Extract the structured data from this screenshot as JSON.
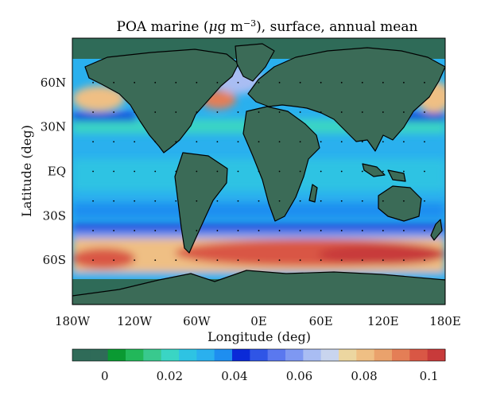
{
  "chart_data": {
    "type": "heatmap",
    "title": {
      "prefix": "POA marine (",
      "mu": "μ",
      "unit_base": "g m",
      "unit_exp": "−3",
      "suffix": "), surface, annual mean"
    },
    "xlabel": "Longitude (deg)",
    "ylabel": "Latitude (deg)",
    "x_ticks": [
      {
        "label": "180W",
        "value": -180
      },
      {
        "label": "120W",
        "value": -120
      },
      {
        "label": "60W",
        "value": -60
      },
      {
        "label": "0E",
        "value": 0
      },
      {
        "label": "60E",
        "value": 60
      },
      {
        "label": "120E",
        "value": 120
      },
      {
        "label": "180E",
        "value": 180
      }
    ],
    "y_ticks": [
      {
        "label": "60N",
        "value": 60
      },
      {
        "label": "30N",
        "value": 30
      },
      {
        "label": "EQ",
        "value": 0
      },
      {
        "label": "30S",
        "value": -30
      },
      {
        "label": "60S",
        "value": -60
      }
    ],
    "xlim": [
      -180,
      180
    ],
    "ylim": [
      -90,
      90
    ],
    "colorbar": {
      "ticks": [
        {
          "label": "0",
          "value": 0
        },
        {
          "label": "0.02",
          "value": 0.02
        },
        {
          "label": "0.04",
          "value": 0.04
        },
        {
          "label": "0.06",
          "value": 0.06
        },
        {
          "label": "0.08",
          "value": 0.08
        },
        {
          "label": "0.1",
          "value": 0.1
        }
      ],
      "range": [
        -0.01,
        0.105
      ],
      "colors": [
        "#2f6b58",
        "#2f6b58",
        "#0a9a32",
        "#22b85a",
        "#39c98e",
        "#3ad5c4",
        "#2ec3e3",
        "#2ab0ee",
        "#1e8ef0",
        "#0a2ad8",
        "#2f55e6",
        "#5a78ef",
        "#7e98f2",
        "#a9bdf3",
        "#c9d5ee",
        "#ecd6a0",
        "#efbf84",
        "#eaa26c",
        "#e47e56",
        "#d95745",
        "#c83a3a"
      ]
    },
    "land_color": "#3b6b57",
    "features": [
      {
        "name": "southern-ocean-band",
        "lat_range": [
          -68,
          -42
        ],
        "lon_range": [
          -180,
          180
        ],
        "value_max": 0.1
      },
      {
        "name": "southern-ocean-peak-atlantic-indian",
        "lat_range": [
          -62,
          -48
        ],
        "lon_range": [
          -40,
          120
        ],
        "value": 0.095
      },
      {
        "name": "south-pacific-peak",
        "lat_range": [
          -65,
          -52
        ],
        "lon_range": [
          -175,
          -130
        ],
        "value": 0.09
      },
      {
        "name": "north-pacific-west",
        "lat_range": [
          40,
          62
        ],
        "lon_range": [
          -178,
          -130
        ],
        "value": 0.08
      },
      {
        "name": "north-pacific-east",
        "lat_range": [
          38,
          60
        ],
        "lon_range": [
          150,
          180
        ],
        "value": 0.08
      },
      {
        "name": "north-atlantic-coastal",
        "lat_range": [
          38,
          68
        ],
        "lon_range": [
          -70,
          -40
        ],
        "value": 0.075
      },
      {
        "name": "tropical-oceans",
        "lat_range": [
          -30,
          30
        ],
        "lon_range": [
          -180,
          180
        ],
        "value": 0.035
      },
      {
        "name": "sea-ice-antarctic",
        "lat_range": [
          -90,
          -68
        ],
        "lon_range": [
          -180,
          180
        ],
        "value": 0.0
      },
      {
        "name": "sea-ice-arctic",
        "lat_range": [
          70,
          90
        ],
        "lon_range": [
          -180,
          180
        ],
        "value": 0.0
      }
    ]
  }
}
